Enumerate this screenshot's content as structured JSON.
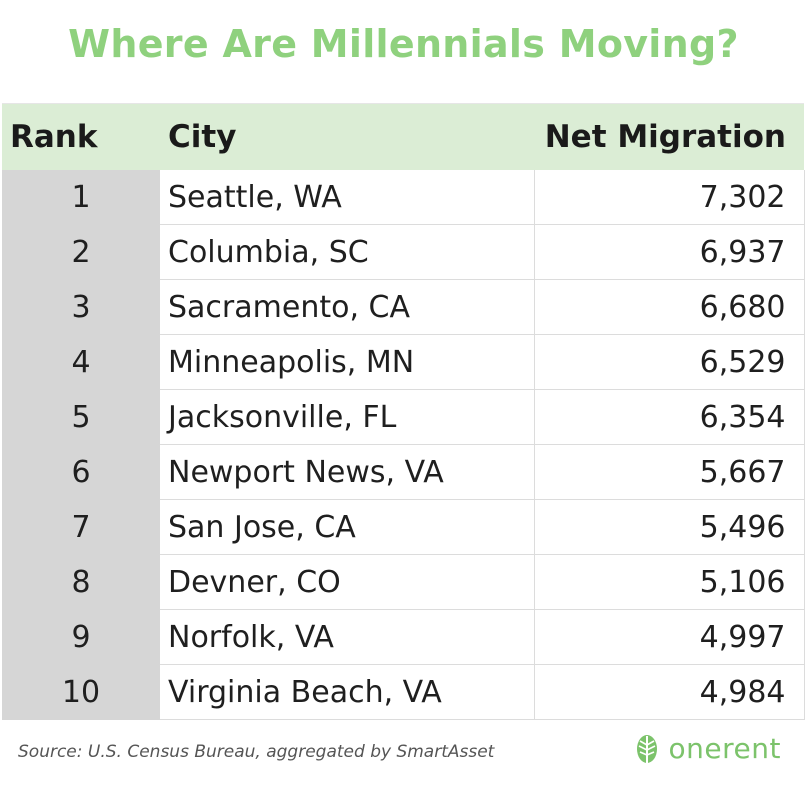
{
  "title": "Where Are Millennials Moving?",
  "table": {
    "headers": {
      "rank": "Rank",
      "city": "City",
      "net": "Net Migration"
    },
    "rows": [
      {
        "rank": "1",
        "city": "Seattle, WA",
        "net": "7,302"
      },
      {
        "rank": "2",
        "city": "Columbia, SC",
        "net": "6,937"
      },
      {
        "rank": "3",
        "city": "Sacramento, CA",
        "net": "6,680"
      },
      {
        "rank": "4",
        "city": "Minneapolis, MN",
        "net": "6,529"
      },
      {
        "rank": "5",
        "city": "Jacksonville, FL",
        "net": "6,354"
      },
      {
        "rank": "6",
        "city": "Newport News, VA",
        "net": "5,667"
      },
      {
        "rank": "7",
        "city": "San Jose, CA",
        "net": "5,496"
      },
      {
        "rank": "8",
        "city": "Devner, CO",
        "net": "5,106"
      },
      {
        "rank": "9",
        "city": "Norfolk, VA",
        "net": "4,997"
      },
      {
        "rank": "10",
        "city": "Virginia Beach, VA",
        "net": "4,984"
      }
    ]
  },
  "footer": {
    "source": "Source: U.S. Census Bureau, aggregated by SmartAsset",
    "logo_text": "onerent"
  },
  "colors": {
    "title": "#8fd17e",
    "header_bg": "#dbedd5",
    "rank_bg": "#d6d6d6",
    "logo": "#7cc36b"
  },
  "icons": {
    "logo": "leaf-icon"
  }
}
